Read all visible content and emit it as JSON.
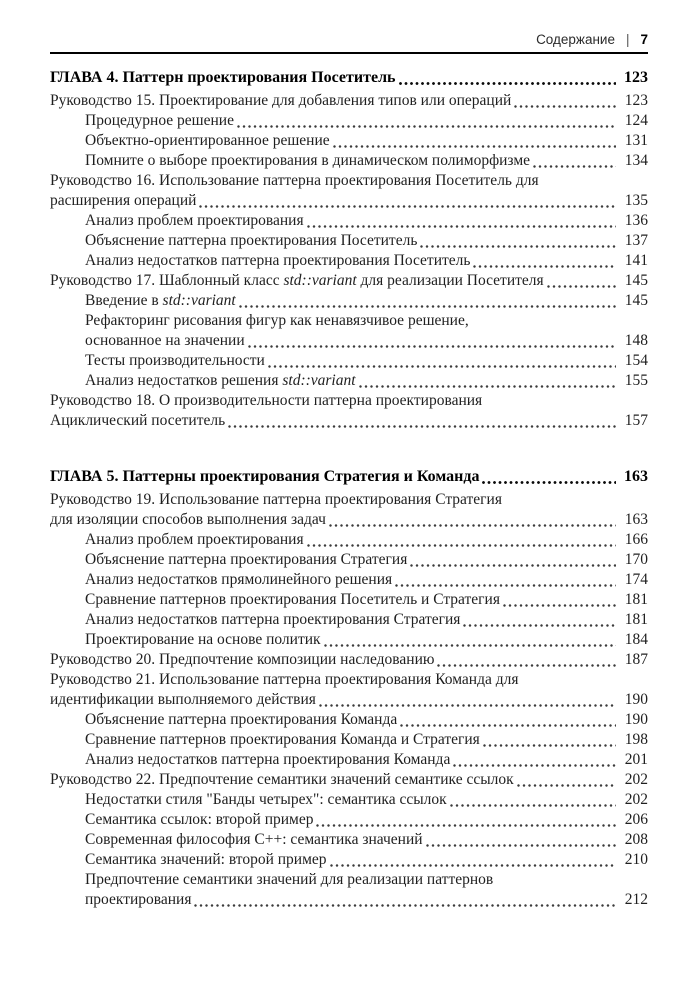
{
  "header": {
    "title": "Содержание",
    "separator": "|",
    "page_number": "7"
  },
  "toc": {
    "sections": [
      {
        "rows": [
          {
            "level": 0,
            "chapter": true,
            "segments": [
              {
                "text": "ГЛАВА 4. Паттерн проектирования Посетитель"
              }
            ],
            "page": "123"
          },
          {
            "level": 0,
            "segments": [
              {
                "text": "Руководство 15. Проектирование для добавления типов или операций"
              }
            ],
            "page": "123"
          },
          {
            "level": 1,
            "segments": [
              {
                "text": "Процедурное решение"
              }
            ],
            "page": "124"
          },
          {
            "level": 1,
            "segments": [
              {
                "text": "Объектно-ориентированное решение"
              }
            ],
            "page": "131"
          },
          {
            "level": 1,
            "segments": [
              {
                "text": "Помните о выборе проектирования в динамическом полиморфизме"
              }
            ],
            "page": "134"
          },
          {
            "level": 0,
            "segments": [
              {
                "text": "Руководство 16. Использование паттерна проектирования Посетитель для"
              }
            ],
            "page": null
          },
          {
            "level": 0,
            "segments": [
              {
                "text": "расширения операций"
              }
            ],
            "page": "135"
          },
          {
            "level": 1,
            "segments": [
              {
                "text": "Анализ проблем проектирования"
              }
            ],
            "page": "136"
          },
          {
            "level": 1,
            "segments": [
              {
                "text": "Объяснение паттерна проектирования Посетитель"
              }
            ],
            "page": "137"
          },
          {
            "level": 1,
            "segments": [
              {
                "text": "Анализ недостатков паттерна проектирования Посетитель"
              }
            ],
            "page": "141"
          },
          {
            "level": 0,
            "segments": [
              {
                "text": "Руководство 17. Шаблонный класс "
              },
              {
                "text": "std::variant",
                "italic": true
              },
              {
                "text": " для реализации Посетителя"
              }
            ],
            "page": "145"
          },
          {
            "level": 1,
            "segments": [
              {
                "text": "Введение в "
              },
              {
                "text": "std::variant",
                "italic": true
              }
            ],
            "page": "145"
          },
          {
            "level": 1,
            "segments": [
              {
                "text": "Рефакторинг рисования фигур как ненавязчивое решение,"
              }
            ],
            "page": null
          },
          {
            "level": 1,
            "segments": [
              {
                "text": "основанное на значении"
              }
            ],
            "page": "148"
          },
          {
            "level": 1,
            "segments": [
              {
                "text": "Тесты производительности"
              }
            ],
            "page": "154"
          },
          {
            "level": 1,
            "segments": [
              {
                "text": "Анализ недостатков решения "
              },
              {
                "text": "std::variant",
                "italic": true
              }
            ],
            "page": "155"
          },
          {
            "level": 0,
            "segments": [
              {
                "text": "Руководство 18. О производительности паттерна проектирования"
              }
            ],
            "page": null
          },
          {
            "level": 0,
            "segments": [
              {
                "text": "Ациклический посетитель"
              }
            ],
            "page": "157"
          }
        ]
      },
      {
        "rows": [
          {
            "level": 0,
            "chapter": true,
            "segments": [
              {
                "text": "ГЛАВА 5. Паттерны проектирования Стратегия и Команда"
              }
            ],
            "page": "163"
          },
          {
            "level": 0,
            "segments": [
              {
                "text": "Руководство 19. Использование паттерна проектирования Стратегия"
              }
            ],
            "page": null
          },
          {
            "level": 0,
            "segments": [
              {
                "text": "для изоляции способов выполнения задач"
              }
            ],
            "page": "163"
          },
          {
            "level": 1,
            "segments": [
              {
                "text": "Анализ проблем проектирования"
              }
            ],
            "page": "166"
          },
          {
            "level": 1,
            "segments": [
              {
                "text": "Объяснение паттерна проектирования Стратегия"
              }
            ],
            "page": "170"
          },
          {
            "level": 1,
            "segments": [
              {
                "text": "Анализ недостатков прямолинейного решения"
              }
            ],
            "page": "174"
          },
          {
            "level": 1,
            "segments": [
              {
                "text": "Сравнение паттернов проектирования Посетитель и Стратегия"
              }
            ],
            "page": "181"
          },
          {
            "level": 1,
            "segments": [
              {
                "text": "Анализ недостатков паттерна проектирования Стратегия"
              }
            ],
            "page": "181"
          },
          {
            "level": 1,
            "segments": [
              {
                "text": "Проектирование на основе политик"
              }
            ],
            "page": "184"
          },
          {
            "level": 0,
            "segments": [
              {
                "text": "Руководство 20. Предпочтение композиции наследованию"
              }
            ],
            "page": "187"
          },
          {
            "level": 0,
            "segments": [
              {
                "text": "Руководство 21. Использование паттерна проектирования Команда для"
              }
            ],
            "page": null
          },
          {
            "level": 0,
            "segments": [
              {
                "text": "идентификации выполняемого действия"
              }
            ],
            "page": "190"
          },
          {
            "level": 1,
            "segments": [
              {
                "text": "Объяснение паттерна проектирования Команда"
              }
            ],
            "page": "190"
          },
          {
            "level": 1,
            "segments": [
              {
                "text": "Сравнение паттернов проектирования Команда и Стратегия"
              }
            ],
            "page": "198"
          },
          {
            "level": 1,
            "segments": [
              {
                "text": "Анализ недостатков паттерна проектирования Команда"
              }
            ],
            "page": "201"
          },
          {
            "level": 0,
            "segments": [
              {
                "text": "Руководство 22. Предпочтение семантики значений семантике ссылок"
              }
            ],
            "page": "202"
          },
          {
            "level": 1,
            "segments": [
              {
                "text": "Недостатки стиля \"Банды четырех\": семантика ссылок"
              }
            ],
            "page": "202"
          },
          {
            "level": 1,
            "segments": [
              {
                "text": "Семантика ссылок: второй пример"
              }
            ],
            "page": "206"
          },
          {
            "level": 1,
            "segments": [
              {
                "text": "Современная философия C++: семантика значений"
              }
            ],
            "page": "208"
          },
          {
            "level": 1,
            "segments": [
              {
                "text": "Семантика значений: второй пример"
              }
            ],
            "page": "210"
          },
          {
            "level": 1,
            "segments": [
              {
                "text": "Предпочтение семантики значений для реализации паттернов"
              }
            ],
            "page": null
          },
          {
            "level": 1,
            "segments": [
              {
                "text": "проектирования"
              }
            ],
            "page": "212"
          }
        ]
      }
    ]
  }
}
